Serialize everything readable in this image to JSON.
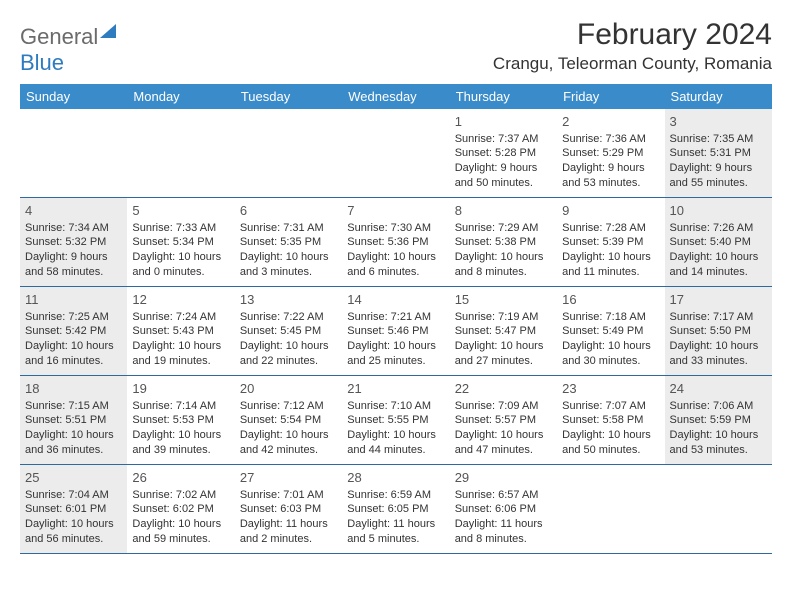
{
  "logo": {
    "word1": "General",
    "word2": "Blue"
  },
  "title": "February 2024",
  "location": "Crangu, Teleorman County, Romania",
  "weekdays": [
    "Sunday",
    "Monday",
    "Tuesday",
    "Wednesday",
    "Thursday",
    "Friday",
    "Saturday"
  ],
  "colors": {
    "header_bg": "#3a8bc9",
    "shade_bg": "#ececec",
    "rule": "#2f6a9e",
    "text": "#333333",
    "logo_gray": "#6b6b6b",
    "logo_blue": "#2f7bbf"
  },
  "weeks": [
    [
      {
        "empty": true
      },
      {
        "empty": true
      },
      {
        "empty": true
      },
      {
        "empty": true
      },
      {
        "num": "1",
        "sunrise": "7:37 AM",
        "sunset": "5:28 PM",
        "daylight": "9 hours and 50 minutes."
      },
      {
        "num": "2",
        "sunrise": "7:36 AM",
        "sunset": "5:29 PM",
        "daylight": "9 hours and 53 minutes."
      },
      {
        "num": "3",
        "sunrise": "7:35 AM",
        "sunset": "5:31 PM",
        "daylight": "9 hours and 55 minutes.",
        "shade": true
      }
    ],
    [
      {
        "num": "4",
        "sunrise": "7:34 AM",
        "sunset": "5:32 PM",
        "daylight": "9 hours and 58 minutes.",
        "shade": true
      },
      {
        "num": "5",
        "sunrise": "7:33 AM",
        "sunset": "5:34 PM",
        "daylight": "10 hours and 0 minutes."
      },
      {
        "num": "6",
        "sunrise": "7:31 AM",
        "sunset": "5:35 PM",
        "daylight": "10 hours and 3 minutes."
      },
      {
        "num": "7",
        "sunrise": "7:30 AM",
        "sunset": "5:36 PM",
        "daylight": "10 hours and 6 minutes."
      },
      {
        "num": "8",
        "sunrise": "7:29 AM",
        "sunset": "5:38 PM",
        "daylight": "10 hours and 8 minutes."
      },
      {
        "num": "9",
        "sunrise": "7:28 AM",
        "sunset": "5:39 PM",
        "daylight": "10 hours and 11 minutes."
      },
      {
        "num": "10",
        "sunrise": "7:26 AM",
        "sunset": "5:40 PM",
        "daylight": "10 hours and 14 minutes.",
        "shade": true
      }
    ],
    [
      {
        "num": "11",
        "sunrise": "7:25 AM",
        "sunset": "5:42 PM",
        "daylight": "10 hours and 16 minutes.",
        "shade": true
      },
      {
        "num": "12",
        "sunrise": "7:24 AM",
        "sunset": "5:43 PM",
        "daylight": "10 hours and 19 minutes."
      },
      {
        "num": "13",
        "sunrise": "7:22 AM",
        "sunset": "5:45 PM",
        "daylight": "10 hours and 22 minutes."
      },
      {
        "num": "14",
        "sunrise": "7:21 AM",
        "sunset": "5:46 PM",
        "daylight": "10 hours and 25 minutes."
      },
      {
        "num": "15",
        "sunrise": "7:19 AM",
        "sunset": "5:47 PM",
        "daylight": "10 hours and 27 minutes."
      },
      {
        "num": "16",
        "sunrise": "7:18 AM",
        "sunset": "5:49 PM",
        "daylight": "10 hours and 30 minutes."
      },
      {
        "num": "17",
        "sunrise": "7:17 AM",
        "sunset": "5:50 PM",
        "daylight": "10 hours and 33 minutes.",
        "shade": true
      }
    ],
    [
      {
        "num": "18",
        "sunrise": "7:15 AM",
        "sunset": "5:51 PM",
        "daylight": "10 hours and 36 minutes.",
        "shade": true
      },
      {
        "num": "19",
        "sunrise": "7:14 AM",
        "sunset": "5:53 PM",
        "daylight": "10 hours and 39 minutes."
      },
      {
        "num": "20",
        "sunrise": "7:12 AM",
        "sunset": "5:54 PM",
        "daylight": "10 hours and 42 minutes."
      },
      {
        "num": "21",
        "sunrise": "7:10 AM",
        "sunset": "5:55 PM",
        "daylight": "10 hours and 44 minutes."
      },
      {
        "num": "22",
        "sunrise": "7:09 AM",
        "sunset": "5:57 PM",
        "daylight": "10 hours and 47 minutes."
      },
      {
        "num": "23",
        "sunrise": "7:07 AM",
        "sunset": "5:58 PM",
        "daylight": "10 hours and 50 minutes."
      },
      {
        "num": "24",
        "sunrise": "7:06 AM",
        "sunset": "5:59 PM",
        "daylight": "10 hours and 53 minutes.",
        "shade": true
      }
    ],
    [
      {
        "num": "25",
        "sunrise": "7:04 AM",
        "sunset": "6:01 PM",
        "daylight": "10 hours and 56 minutes.",
        "shade": true
      },
      {
        "num": "26",
        "sunrise": "7:02 AM",
        "sunset": "6:02 PM",
        "daylight": "10 hours and 59 minutes."
      },
      {
        "num": "27",
        "sunrise": "7:01 AM",
        "sunset": "6:03 PM",
        "daylight": "11 hours and 2 minutes."
      },
      {
        "num": "28",
        "sunrise": "6:59 AM",
        "sunset": "6:05 PM",
        "daylight": "11 hours and 5 minutes."
      },
      {
        "num": "29",
        "sunrise": "6:57 AM",
        "sunset": "6:06 PM",
        "daylight": "11 hours and 8 minutes."
      },
      {
        "empty": true
      },
      {
        "empty": true
      }
    ]
  ],
  "labels": {
    "sunrise": "Sunrise: ",
    "sunset": "Sunset: ",
    "daylight": "Daylight: "
  }
}
